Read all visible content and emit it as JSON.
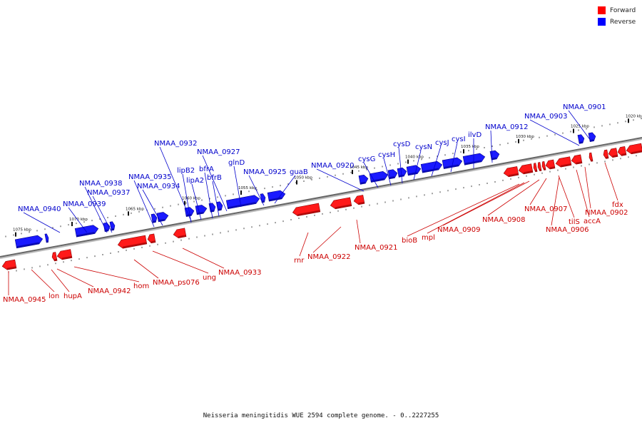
{
  "legend": {
    "forward_label": "Forward",
    "reverse_label": "Reverse",
    "forward_color": "#ff0000",
    "reverse_color": "#0000ff"
  },
  "footer": {
    "caption": "Neisseria meningitidis WUE 2594 complete genome. - 0..2227255"
  },
  "ticks": [
    "1075 kbp",
    "1070 kbp",
    "1065 kbp",
    "1060 kbp",
    "1055 kbp",
    "1050 kbp",
    "1045 kbp",
    "1040 kbp",
    "1035 kbp",
    "1030 kbp",
    "1025 kbp",
    "1020 kbp"
  ],
  "reverse_genes": [
    "NMAA_0940",
    "NMAA_0939",
    "NMAA_0938",
    "NMAA_0937",
    "NMAA_0935",
    "NMAA_0934",
    "NMAA_0932",
    "lipB2",
    "lipA2",
    "bfrA",
    "bfrB",
    "NMAA_0927",
    "glnD",
    "NMAA_0925",
    "guaB",
    "NMAA_0920",
    "cysG",
    "cysH",
    "cysD",
    "cysN",
    "cysJ",
    "cysI",
    "ilvD",
    "NMAA_0912",
    "NMAA_0903",
    "NMAA_0901"
  ],
  "forward_genes": [
    "NMAA_0945",
    "lon",
    "hupA",
    "NMAA_0942",
    "hom",
    "NMAA_ps076",
    "ung",
    "NMAA_0933",
    "rnr",
    "NMAA_0922",
    "NMAA_0921",
    "bioB",
    "mpl",
    "NMAA_0909",
    "NMAA_0908",
    "NMAA_0907",
    "NMAA_0906",
    "tilS",
    "accA",
    "NMAA_0902",
    "fdx"
  ]
}
